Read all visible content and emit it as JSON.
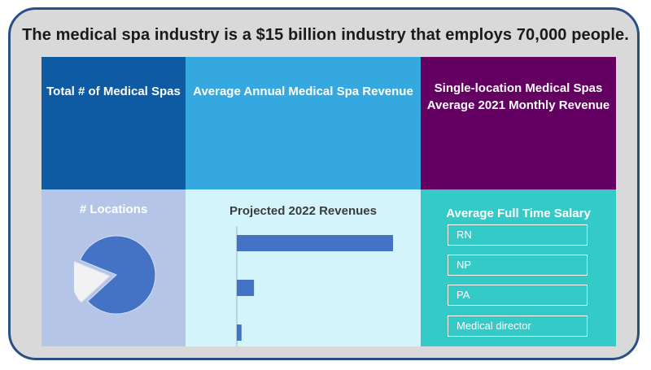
{
  "headline": "The medical spa industry is a $15 billion industry that employs 70,000 people.",
  "panels": {
    "total_spas": {
      "title": "Total # of Medical Spas",
      "color": "#0e5aa3"
    },
    "avg_revenue": {
      "title": "Average Annual Medical Spa Revenue",
      "color": "#35a8e0"
    },
    "single_location": {
      "title_line1": "Single-location Medical Spas",
      "title_line2": "Average 2021 Monthly Revenue",
      "color": "#650063"
    },
    "locations": {
      "title": "# Locations",
      "color": "#b4c5e7"
    },
    "projected": {
      "title": "Projected 2022 Revenues",
      "color": "#d2f4fa"
    },
    "salary": {
      "title": "Average Full Time Salary",
      "color": "#34cac8",
      "roles": [
        "RN",
        "NP",
        "PA",
        "Medical director"
      ]
    }
  },
  "chart_data": [
    {
      "type": "pie",
      "title": "# Locations",
      "values": [
        82,
        18
      ],
      "colors": [
        "#4472c4",
        "#f2f2f2"
      ]
    },
    {
      "type": "bar",
      "orientation": "horizontal",
      "title": "Projected 2022 Revenues",
      "values": [
        100,
        11,
        3
      ],
      "color": "#4472c4"
    }
  ]
}
